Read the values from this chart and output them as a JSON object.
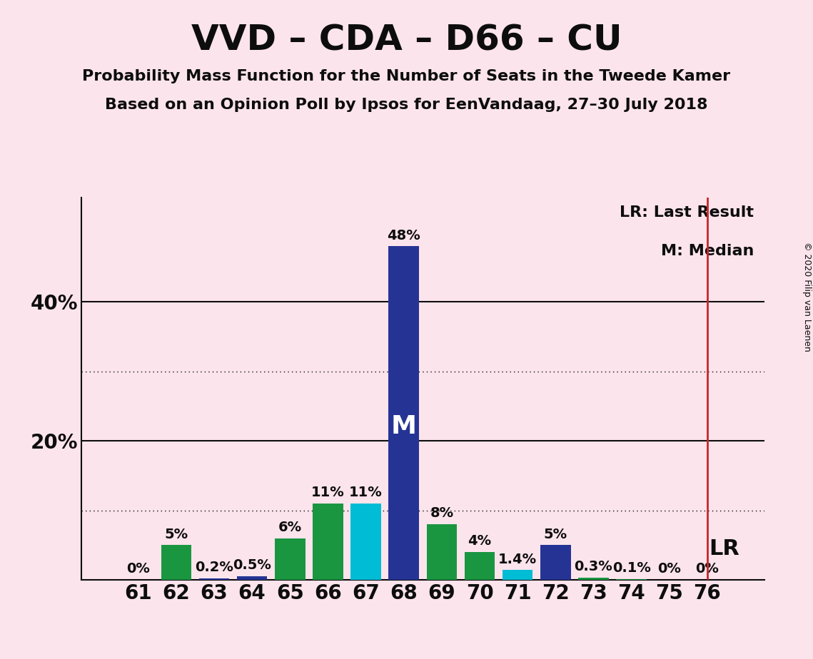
{
  "title": "VVD – CDA – D66 – CU",
  "subtitle1": "Probability Mass Function for the Number of Seats in the Tweede Kamer",
  "subtitle2": "Based on an Opinion Poll by Ipsos for EenVandaag, 27–30 July 2018",
  "copyright": "© 2020 Filip van Laenen",
  "seats": [
    61,
    62,
    63,
    64,
    65,
    66,
    67,
    68,
    69,
    70,
    71,
    72,
    73,
    74,
    75,
    76
  ],
  "values": [
    0.0,
    5.0,
    0.2,
    0.5,
    6.0,
    11.0,
    11.0,
    48.0,
    8.0,
    4.0,
    1.4,
    5.0,
    0.3,
    0.1,
    0.0,
    0.0
  ],
  "bar_colors": [
    "#1a9641",
    "#1a9641",
    "#253494",
    "#253494",
    "#1a9641",
    "#1a9641",
    "#00bcd4",
    "#253494",
    "#1a9641",
    "#1a9641",
    "#00bcd4",
    "#253494",
    "#1a9641",
    "#1a9641",
    "#1a9641",
    "#1a9641"
  ],
  "median_seat": 68,
  "lr_seat": 76,
  "lr_label": "LR",
  "background_color": "#fce4ec",
  "ylim_max": 55,
  "solid_gridlines": [
    20,
    40
  ],
  "dotted_gridlines": [
    10,
    30
  ],
  "median_label_color": "white",
  "label_color": "#0d0d0d",
  "axis_color": "#0d0d0d",
  "lr_line_color": "#c62828",
  "title_fontsize": 36,
  "subtitle_fontsize": 16,
  "annotation_fontsize": 14,
  "tick_fontsize": 20,
  "median_fontsize": 26,
  "lr_fontsize": 22,
  "legend_fontsize": 16,
  "copyright_fontsize": 9
}
